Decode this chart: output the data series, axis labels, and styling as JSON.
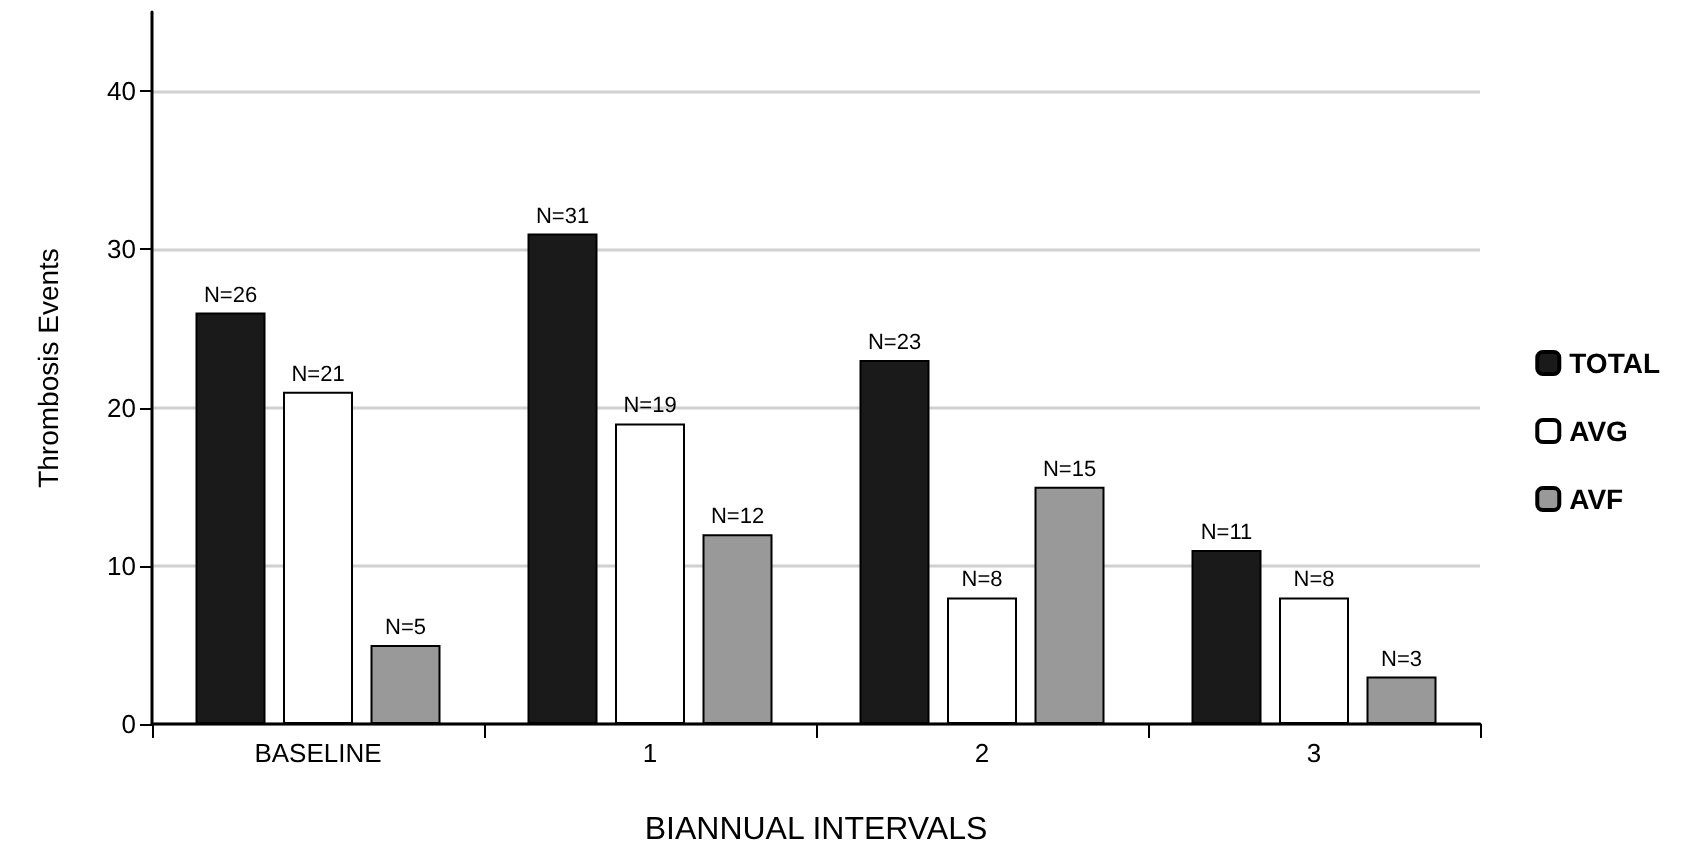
{
  "chart_data": {
    "type": "bar",
    "xlabel": "BIANNUAL INTERVALS",
    "ylabel": "Thrombosis Events",
    "categories": [
      "BASELINE",
      "1",
      "2",
      "3"
    ],
    "series": [
      {
        "name": "TOTAL",
        "color": "#1a1a1a",
        "values": [
          26,
          31,
          23,
          11
        ],
        "value_labels": [
          "N=26",
          "N=31",
          "N=23",
          "N=11"
        ]
      },
      {
        "name": "AVG",
        "color": "#ffffff",
        "values": [
          21,
          19,
          8,
          8
        ],
        "value_labels": [
          "N=21",
          "N=19",
          "N=8",
          "N=8"
        ]
      },
      {
        "name": "AVF",
        "color": "#999999",
        "values": [
          5,
          12,
          15,
          3
        ],
        "value_labels": [
          "N=5",
          "N=12",
          "N=15",
          "N=3"
        ]
      }
    ],
    "ylim": [
      0,
      45
    ],
    "yticks": [
      0,
      10,
      20,
      30,
      40
    ],
    "grid": "y",
    "legend": "right"
  }
}
